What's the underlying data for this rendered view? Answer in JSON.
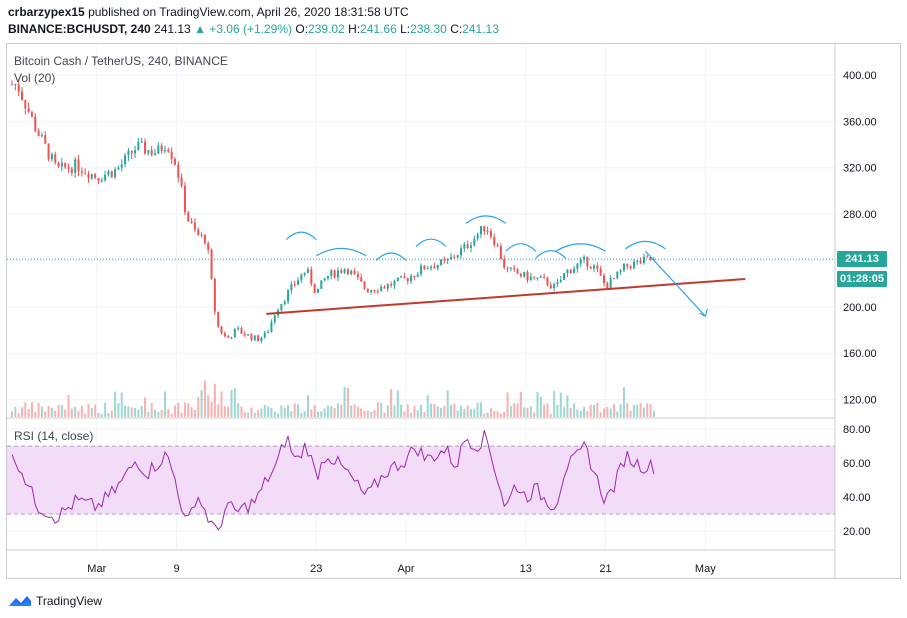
{
  "header": {
    "author": "crbarzypex15",
    "published_text": "published on TradingView.com, April 26, 2020 18:31:58 UTC",
    "symbol": "BINANCE:BCHUSDT, 240",
    "last": "241.13",
    "change": "▲ +3.06 (+1.29%)",
    "o_label": "O:",
    "o": "239.02",
    "h_label": "H:",
    "h": "241.66",
    "l_label": "L:",
    "l": "238.30",
    "c_label": "C:",
    "c": "241.13"
  },
  "legend": {
    "main": "Bitcoin Cash / TetherUS, 240, BINANCE",
    "vol": "Vol (20)",
    "rsi": "RSI (14, close)"
  },
  "price_box": {
    "price": "241.13",
    "countdown": "01:28:05"
  },
  "footer": {
    "brand": "TradingView"
  },
  "colors": {
    "up": "#26a69a",
    "down": "#ef5350",
    "trendline": "#c0392b",
    "annotation": "#29a3e8",
    "rsi": "#9c27b0",
    "rsi_band": "#f2dcf8"
  },
  "chart_data": [
    {
      "type": "candlestick",
      "title": "Bitcoin Cash / TetherUS, 240, BINANCE",
      "price_axis_ticks": [
        "120.00",
        "160.00",
        "200.00",
        "240.00",
        "280.00",
        "320.00",
        "360.00",
        "400.00"
      ],
      "ylim": [
        105,
        425
      ],
      "time_axis_labels": [
        "Mar",
        "9",
        "23",
        "Apr",
        "13",
        "21",
        "May"
      ],
      "close_trace": [
        [
          "Feb 22",
          392
        ],
        [
          "Feb 24",
          352
        ],
        [
          "Feb 26",
          318
        ],
        [
          "Feb 28",
          322
        ],
        [
          "Mar 1",
          312
        ],
        [
          "Mar 3",
          318
        ],
        [
          "Mar 5",
          338
        ],
        [
          "Mar 7",
          333
        ],
        [
          "Mar 8",
          342
        ],
        [
          "Mar 9",
          322
        ],
        [
          "Mar 10",
          278
        ],
        [
          "Mar 11",
          262
        ],
        [
          "Mar 12",
          258
        ],
        [
          "Mar 13",
          185
        ],
        [
          "Mar 14",
          172
        ],
        [
          "Mar 15",
          180
        ],
        [
          "Mar 17",
          172
        ],
        [
          "Mar 18",
          176
        ],
        [
          "Mar 19",
          198
        ],
        [
          "Mar 21",
          222
        ],
        [
          "Mar 22",
          232
        ],
        [
          "Mar 23",
          212
        ],
        [
          "Mar 24",
          226
        ],
        [
          "Mar 26",
          234
        ],
        [
          "Mar 28",
          215
        ],
        [
          "Mar 30",
          218
        ],
        [
          "Apr 1",
          224
        ],
        [
          "Apr 3",
          235
        ],
        [
          "Apr 5",
          238
        ],
        [
          "Apr 7",
          252
        ],
        [
          "Apr 9",
          270
        ],
        [
          "Apr 10",
          255
        ],
        [
          "Apr 11",
          232
        ],
        [
          "Apr 13",
          226
        ],
        [
          "Apr 15",
          222
        ],
        [
          "Apr 16",
          216
        ],
        [
          "Apr 17",
          230
        ],
        [
          "Apr 19",
          240
        ],
        [
          "Apr 20",
          233
        ],
        [
          "Apr 21",
          218
        ],
        [
          "Apr 22",
          225
        ],
        [
          "Apr 23",
          235
        ],
        [
          "Apr 25",
          240
        ],
        [
          "Apr 26",
          241.13
        ]
      ],
      "last_price": 241.13,
      "annotations": {
        "trendline": [
          [
            "Mar 18",
            194
          ],
          [
            "May 5",
            224
          ]
        ],
        "projection_arrow": [
          [
            "Apr 25",
            248
          ],
          [
            "May 1",
            192
          ]
        ]
      }
    },
    {
      "type": "bar",
      "title": "Vol (20)",
      "note": "volume histogram, no axis values shown"
    },
    {
      "type": "line",
      "title": "RSI (14, close)",
      "y_axis_ticks": [
        "20.00",
        "40.00",
        "60.00",
        "80.00"
      ],
      "ylim": [
        10,
        86
      ],
      "bands": [
        30,
        70
      ],
      "series": [
        {
          "values": [
            [
              "Feb 22",
              62
            ],
            [
              "Feb 24",
              35
            ],
            [
              "Feb 26",
              28
            ],
            [
              "Feb 28",
              38
            ],
            [
              "Mar 1",
              34
            ],
            [
              "Mar 3",
              45
            ],
            [
              "Mar 5",
              62
            ],
            [
              "Mar 6",
              54
            ],
            [
              "Mar 8",
              65
            ],
            [
              "Mar 9",
              48
            ],
            [
              "Mar 10",
              22
            ],
            [
              "Mar 11",
              42
            ],
            [
              "Mar 12",
              30
            ],
            [
              "Mar 13",
              18
            ],
            [
              "Mar 14",
              35
            ],
            [
              "Mar 15",
              31
            ],
            [
              "Mar 17",
              38
            ],
            [
              "Mar 18",
              50
            ],
            [
              "Mar 19",
              58
            ],
            [
              "Mar 20",
              76
            ],
            [
              "Mar 21",
              60
            ],
            [
              "Mar 22",
              72
            ],
            [
              "Mar 23",
              52
            ],
            [
              "Mar 24",
              66
            ],
            [
              "Mar 26",
              55
            ],
            [
              "Mar 28",
              40
            ],
            [
              "Mar 30",
              55
            ],
            [
              "Apr 1",
              62
            ],
            [
              "Apr 2",
              70
            ],
            [
              "Apr 3",
              62
            ],
            [
              "Apr 5",
              68
            ],
            [
              "Apr 6",
              58
            ],
            [
              "Apr 7",
              76
            ],
            [
              "Apr 8",
              70
            ],
            [
              "Apr 9",
              76
            ],
            [
              "Apr 10",
              55
            ],
            [
              "Apr 11",
              33
            ],
            [
              "Apr 12",
              48
            ],
            [
              "Apr 13",
              40
            ],
            [
              "Apr 14",
              45
            ],
            [
              "Apr 15",
              38
            ],
            [
              "Apr 16",
              35
            ],
            [
              "Apr 17",
              58
            ],
            [
              "Apr 18",
              62
            ],
            [
              "Apr 19",
              70
            ],
            [
              "Apr 20",
              52
            ],
            [
              "Apr 21",
              38
            ],
            [
              "Apr 22",
              48
            ],
            [
              "Apr 23",
              65
            ],
            [
              "Apr 24",
              60
            ],
            [
              "Apr 25",
              58
            ],
            [
              "Apr 26",
              58
            ]
          ]
        }
      ]
    }
  ]
}
